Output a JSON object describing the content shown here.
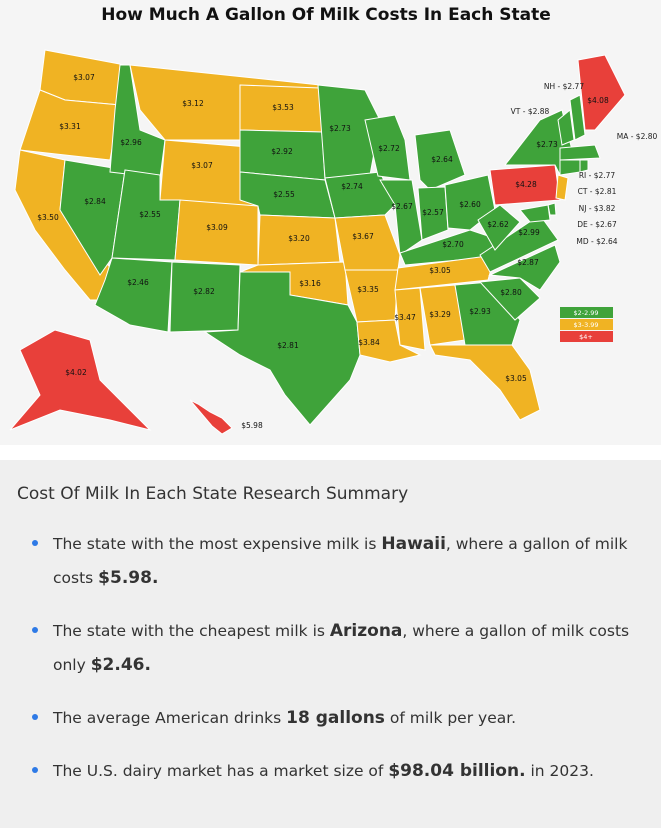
{
  "title": "How Much A Gallon Of Milk Costs In Each State",
  "map": {
    "states": [
      {
        "label": "$3.07",
        "color": "#f0b323"
      },
      {
        "label": "$3.31",
        "color": "#f0b323"
      },
      {
        "label": "$3.50",
        "color": "#f0b323"
      },
      {
        "label": "$2.84",
        "color": "#3fa33a"
      },
      {
        "label": "$2.96",
        "color": "#3fa33a"
      },
      {
        "label": "$3.12",
        "color": "#f0b323"
      },
      {
        "label": "$3.07",
        "color": "#f0b323"
      },
      {
        "label": "$2.55",
        "color": "#3fa33a"
      },
      {
        "label": "$2.46",
        "color": "#3fa33a"
      },
      {
        "label": "$3.09",
        "color": "#f0b323"
      },
      {
        "label": "$2.82",
        "color": "#3fa33a"
      },
      {
        "label": "$3.53",
        "color": "#f0b323"
      },
      {
        "label": "$2.92",
        "color": "#3fa33a"
      },
      {
        "label": "$2.55",
        "color": "#3fa33a"
      },
      {
        "label": "$3.20",
        "color": "#f0b323"
      },
      {
        "label": "$3.16",
        "color": "#f0b323"
      },
      {
        "label": "$2.81",
        "color": "#3fa33a"
      },
      {
        "label": "$2.73",
        "color": "#3fa33a"
      },
      {
        "label": "$2.74",
        "color": "#3fa33a"
      },
      {
        "label": "$3.67",
        "color": "#f0b323"
      },
      {
        "label": "$3.35",
        "color": "#f0b323"
      },
      {
        "label": "$3.84",
        "color": "#f0b323"
      },
      {
        "label": "$2.72",
        "color": "#3fa33a"
      },
      {
        "label": "$2.67",
        "color": "#3fa33a"
      },
      {
        "label": "$2.64",
        "color": "#3fa33a"
      },
      {
        "label": "$2.57",
        "color": "#3fa33a"
      },
      {
        "label": "$2.60",
        "color": "#3fa33a"
      },
      {
        "label": "$2.70",
        "color": "#3fa33a"
      },
      {
        "label": "$3.05",
        "color": "#f0b323"
      },
      {
        "label": "$3.47",
        "color": "#f0b323"
      },
      {
        "label": "$3.29",
        "color": "#f0b323"
      },
      {
        "label": "$2.93",
        "color": "#3fa33a"
      },
      {
        "label": "$3.05",
        "color": "#f0b323"
      },
      {
        "label": "$2.80",
        "color": "#3fa33a"
      },
      {
        "label": "$2.87",
        "color": "#3fa33a"
      },
      {
        "label": "$2.99",
        "color": "#3fa33a"
      },
      {
        "label": "$2.62",
        "color": "#3fa33a"
      },
      {
        "label": "$4.28",
        "color": "#e8403a"
      },
      {
        "label": "$2.73",
        "color": "#3fa33a"
      },
      {
        "label": "$4.08",
        "color": "#e8403a"
      },
      {
        "label": "$4.02",
        "color": "#e8403a"
      },
      {
        "label": "$5.98",
        "color": "#e8403a"
      },
      {
        "label": "NH - $2.77",
        "color": "#3fa33a"
      },
      {
        "label": "VT - $2.88",
        "color": "#3fa33a"
      },
      {
        "label": "MA - $2.80",
        "color": "#3fa33a"
      },
      {
        "label": "RI - $2.77",
        "color": "#3fa33a"
      },
      {
        "label": "CT - $2.81",
        "color": "#3fa33a"
      },
      {
        "label": "NJ - $3.82",
        "color": "#f0b323"
      },
      {
        "label": "DE - $2.67",
        "color": "#3fa33a"
      },
      {
        "label": "MD - $2.64",
        "color": "#3fa33a"
      }
    ],
    "legend": [
      {
        "label": "$2-2.99",
        "color": "#3fa33a"
      },
      {
        "label": "$3-3.99",
        "color": "#f0b323"
      },
      {
        "label": "$4+",
        "color": "#e8403a"
      }
    ]
  },
  "summary": {
    "heading": "Cost Of Milk In Each State Research Summary",
    "bullets": [
      {
        "parts": [
          {
            "text": "The state with the most expensive milk is ",
            "bold": false
          },
          {
            "text": "Hawaii",
            "bold": true
          },
          {
            "text": ", where a gallon of milk costs ",
            "bold": false
          },
          {
            "text": "$5.98.",
            "bold": true
          }
        ]
      },
      {
        "parts": [
          {
            "text": "The state with the cheapest milk is ",
            "bold": false
          },
          {
            "text": "Arizona",
            "bold": true
          },
          {
            "text": ", where a gallon of milk costs only ",
            "bold": false
          },
          {
            "text": "$2.46.",
            "bold": true
          }
        ]
      },
      {
        "parts": [
          {
            "text": "The average American drinks ",
            "bold": false
          },
          {
            "text": "18 gallons",
            "bold": true
          },
          {
            "text": " of milk per year.",
            "bold": false
          }
        ]
      },
      {
        "parts": [
          {
            "text": "The U.S. dairy market has a market size of ",
            "bold": false
          },
          {
            "text": "$98.04 billion.",
            "bold": true
          },
          {
            "text": " in 2023.",
            "bold": false
          }
        ]
      }
    ]
  }
}
